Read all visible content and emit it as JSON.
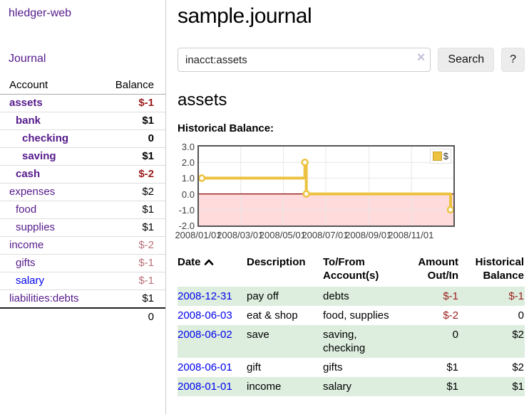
{
  "sidebar": {
    "brand": "hledger-web",
    "nav": [
      {
        "label": "Journal"
      }
    ],
    "accounts_table": {
      "headers": {
        "account": "Account",
        "balance": "Balance"
      },
      "rows": [
        {
          "name": "assets",
          "balance": "$-1",
          "depth": 1,
          "bold": true,
          "tone": "neg"
        },
        {
          "name": "bank",
          "balance": "$1",
          "depth": 2,
          "bold": true,
          "tone": "pos"
        },
        {
          "name": "checking",
          "balance": "0",
          "depth": 3,
          "bold": true,
          "tone": "pos"
        },
        {
          "name": "saving",
          "balance": "$1",
          "depth": 3,
          "bold": true,
          "tone": "pos"
        },
        {
          "name": "cash",
          "balance": "$-2",
          "depth": 2,
          "bold": true,
          "tone": "neg"
        },
        {
          "name": "expenses",
          "balance": "$2",
          "depth": 1,
          "bold": false,
          "tone": "pos"
        },
        {
          "name": "food",
          "balance": "$1",
          "depth": 2,
          "bold": false,
          "tone": "pos"
        },
        {
          "name": "supplies",
          "balance": "$1",
          "depth": 2,
          "bold": false,
          "tone": "pos"
        },
        {
          "name": "income",
          "balance": "$-2",
          "depth": 1,
          "bold": false,
          "tone": "neg-soft"
        },
        {
          "name": "gifts",
          "balance": "$-1",
          "depth": 2,
          "bold": false,
          "tone": "neg-soft"
        },
        {
          "name": "salary",
          "balance": "$-1",
          "depth": 2,
          "bold": false,
          "tone": "neg-soft",
          "link": "blue"
        },
        {
          "name": "liabilities:debts",
          "balance": "$1",
          "depth": 1,
          "bold": false,
          "tone": "pos"
        }
      ],
      "total": "0"
    }
  },
  "main": {
    "title": "sample.journal",
    "search": {
      "query": "inacct:assets",
      "clear_icon": "×",
      "search_button": "Search",
      "help_button": "?"
    },
    "account_heading": "assets",
    "chart_label": "Historical Balance:"
  },
  "chart_data": {
    "type": "line",
    "step": true,
    "title": "Historical Balance:",
    "series": [
      {
        "name": "$",
        "color": "#edc240",
        "points": [
          [
            "2008-01-01",
            1
          ],
          [
            "2008-06-01",
            2
          ],
          [
            "2008-06-03",
            0
          ],
          [
            "2008-12-31",
            -1
          ]
        ]
      }
    ],
    "xlim": [
      "2008-01-01",
      "2008-12-31"
    ],
    "ylim": [
      -2,
      3
    ],
    "y_ticks": [
      3,
      2,
      1,
      0,
      -1,
      -2
    ],
    "x_tick_dates": [
      "2008-01-01",
      "2008-03-01",
      "2008-05-01",
      "2008-07-01",
      "2008-09-01",
      "2008-11-01"
    ],
    "x_ticks": [
      "2008/01/01",
      "2008/03/01",
      "2008/05/01",
      "2008/07/01",
      "2008/09/01",
      "2008/11/01"
    ],
    "legend": {
      "label": "$",
      "position": "top-right"
    },
    "grid": true,
    "negative_region_color": "#ffdbdb",
    "zero_line_color": "#8b0000"
  },
  "register_table": {
    "headers": [
      {
        "label": "Date",
        "sorted": "asc"
      },
      {
        "label": "Description"
      },
      {
        "label": "To/From Account(s)"
      },
      {
        "label": "Amount Out/In",
        "align": "right"
      },
      {
        "label": "Historical Balance",
        "align": "right"
      }
    ],
    "rows": [
      {
        "date": "2008-12-31",
        "description": "pay off",
        "accounts": "debts",
        "amount": "$-1",
        "amount_tone": "neg",
        "balance": "$-1",
        "balance_tone": "neg",
        "shaded": true
      },
      {
        "date": "2008-06-03",
        "description": "eat & shop",
        "accounts": "food, supplies",
        "amount": "$-2",
        "amount_tone": "neg",
        "balance": "0",
        "balance_tone": "pos",
        "shaded": false
      },
      {
        "date": "2008-06-02",
        "description": "save",
        "accounts": "saving, checking",
        "amount": "0",
        "amount_tone": "pos",
        "balance": "$2",
        "balance_tone": "pos",
        "shaded": true
      },
      {
        "date": "2008-06-01",
        "description": "gift",
        "accounts": "gifts",
        "amount": "$1",
        "amount_tone": "pos",
        "balance": "$2",
        "balance_tone": "pos",
        "shaded": false
      },
      {
        "date": "2008-01-01",
        "description": "income",
        "accounts": "salary",
        "amount": "$1",
        "amount_tone": "pos",
        "balance": "$1",
        "balance_tone": "pos",
        "shaded": true
      }
    ]
  },
  "colors": {
    "link_purple": "#551a8b",
    "link_blue": "#0000ee",
    "negative_strong": "#9b1c1c",
    "negative_soft": "#b87079",
    "row_green": "#ddeede",
    "chart_line": "#edc240",
    "chart_negative_fill": "#ffdbdb",
    "chart_zero_line": "#8b0000",
    "button_bg": "#ececec"
  }
}
